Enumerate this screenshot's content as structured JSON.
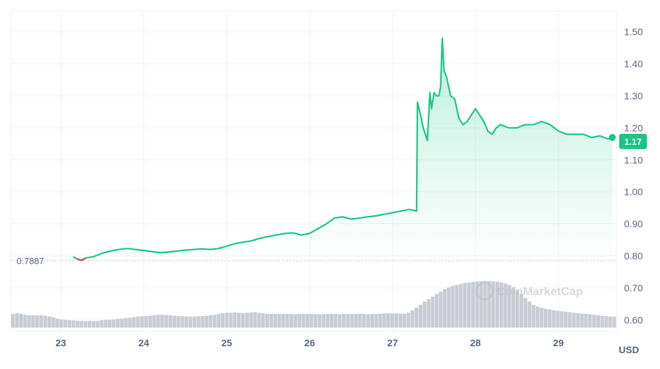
{
  "chart_data": {
    "type": "area",
    "currency_label": "USD",
    "watermark": "CoinMarketCap",
    "open_price_label": "0.7887",
    "current_price_label": "1.17",
    "ylim": [
      0.565,
      1.565
    ],
    "xlim": [
      22.4,
      29.7
    ],
    "y_ticks": [
      "0.60",
      "0.70",
      "0.80",
      "0.90",
      "1.00",
      "1.10",
      "1.20",
      "1.30",
      "1.40",
      "1.50"
    ],
    "x_ticks": [
      "23",
      "24",
      "25",
      "26",
      "27",
      "28",
      "29"
    ],
    "grid": true,
    "colors": {
      "line": "#16c784",
      "line_below_open": "#ea3943",
      "area_top": "#16c784",
      "volume": "#c8ccd3",
      "axis_text": "#58667e",
      "grid": "#eff2f5",
      "baseline": "#8a929e"
    },
    "series": [
      {
        "x": [
          23.15,
          23.2,
          23.25,
          23.3,
          23.4,
          23.5,
          23.6,
          23.7,
          23.8,
          23.9,
          24.0,
          24.1,
          24.2,
          24.3,
          24.4,
          24.5,
          24.6,
          24.7,
          24.8,
          24.9,
          25.0,
          25.1,
          25.2,
          25.3,
          25.4,
          25.5,
          25.6,
          25.7,
          25.8,
          25.9,
          26.0,
          26.1,
          26.2,
          26.3,
          26.4,
          26.5,
          26.6,
          26.7,
          26.8,
          26.9,
          27.0,
          27.1,
          27.2,
          27.29,
          27.3,
          27.33,
          27.37,
          27.42,
          27.45,
          27.47,
          27.5,
          27.53,
          27.56,
          27.58,
          27.6,
          27.62,
          27.65,
          27.7,
          27.75,
          27.8,
          27.85,
          27.9,
          27.95,
          28.0,
          28.05,
          28.1,
          28.15,
          28.2,
          28.25,
          28.3,
          28.4,
          28.5,
          28.6,
          28.7,
          28.8,
          28.9,
          29.0,
          29.1,
          29.2,
          29.3,
          29.4,
          29.5,
          29.6,
          29.65
        ],
        "y": [
          0.797,
          0.79,
          0.786,
          0.793,
          0.798,
          0.808,
          0.815,
          0.82,
          0.823,
          0.82,
          0.817,
          0.813,
          0.81,
          0.812,
          0.815,
          0.818,
          0.82,
          0.822,
          0.82,
          0.823,
          0.83,
          0.838,
          0.843,
          0.847,
          0.855,
          0.86,
          0.865,
          0.87,
          0.872,
          0.865,
          0.87,
          0.885,
          0.9,
          0.918,
          0.922,
          0.915,
          0.918,
          0.922,
          0.925,
          0.93,
          0.935,
          0.94,
          0.945,
          0.94,
          1.28,
          1.25,
          1.2,
          1.16,
          1.31,
          1.26,
          1.31,
          1.3,
          1.3,
          1.33,
          1.48,
          1.38,
          1.36,
          1.3,
          1.29,
          1.23,
          1.21,
          1.22,
          1.24,
          1.26,
          1.24,
          1.22,
          1.19,
          1.18,
          1.2,
          1.21,
          1.2,
          1.2,
          1.21,
          1.21,
          1.22,
          1.21,
          1.19,
          1.18,
          1.18,
          1.18,
          1.17,
          1.175,
          1.165,
          1.17
        ]
      }
    ],
    "volume_norm": [
      0.55,
      0.58,
      0.56,
      0.52,
      0.5,
      0.5,
      0.49,
      0.5,
      0.48,
      0.45,
      0.42,
      0.36,
      0.33,
      0.32,
      0.3,
      0.29,
      0.28,
      0.27,
      0.26,
      0.27,
      0.26,
      0.27,
      0.3,
      0.31,
      0.32,
      0.33,
      0.35,
      0.36,
      0.38,
      0.4,
      0.42,
      0.45,
      0.46,
      0.47,
      0.48,
      0.5,
      0.52,
      0.52,
      0.51,
      0.5,
      0.48,
      0.47,
      0.46,
      0.45,
      0.44,
      0.45,
      0.46,
      0.47,
      0.48,
      0.5,
      0.52,
      0.55,
      0.58,
      0.6,
      0.6,
      0.61,
      0.6,
      0.59,
      0.6,
      0.61,
      0.62,
      0.6,
      0.58,
      0.56,
      0.55,
      0.55,
      0.55,
      0.56,
      0.55,
      0.55,
      0.54,
      0.55,
      0.55,
      0.56,
      0.55,
      0.54,
      0.54,
      0.54,
      0.55,
      0.56,
      0.55,
      0.54,
      0.55,
      0.55,
      0.55,
      0.56,
      0.56,
      0.55,
      0.54,
      0.55,
      0.55,
      0.56,
      0.57,
      0.58,
      0.57,
      0.57,
      0.56,
      0.56,
      0.6,
      0.7,
      0.8,
      0.92,
      1.05,
      1.15,
      1.25,
      1.35,
      1.45,
      1.55,
      1.62,
      1.68,
      1.72,
      1.76,
      1.8,
      1.82,
      1.84,
      1.86,
      1.87,
      1.88,
      1.88,
      1.87,
      1.85,
      1.82,
      1.78,
      1.72,
      1.62,
      1.5,
      1.35,
      1.2,
      1.05,
      0.92,
      0.85,
      0.8,
      0.76,
      0.73,
      0.7,
      0.68,
      0.66,
      0.64,
      0.62,
      0.6,
      0.58,
      0.56,
      0.55,
      0.54,
      0.52,
      0.5,
      0.48,
      0.47,
      0.45,
      0.44
    ]
  }
}
